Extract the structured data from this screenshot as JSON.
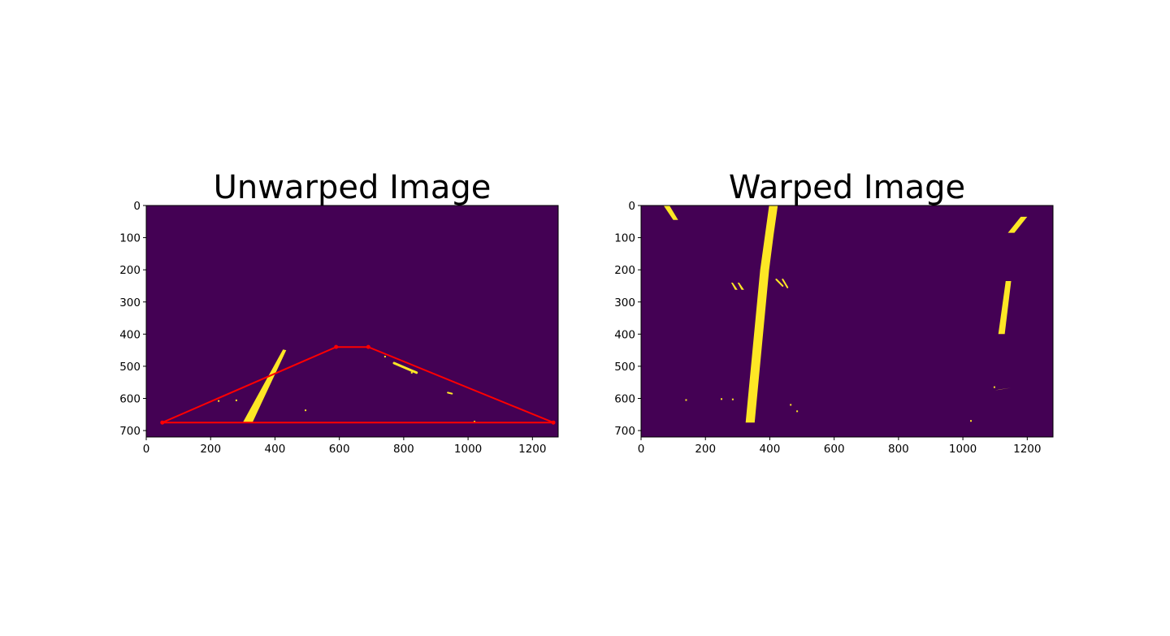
{
  "colors": {
    "background": "#440154",
    "lane": "#fde725",
    "polygon": "#ff0000",
    "axis": "#000000"
  },
  "chart_data": [
    {
      "type": "image",
      "title": "Unwarped Image",
      "xlim": [
        0,
        1280
      ],
      "ylim": [
        720,
        0
      ],
      "xticks": [
        0,
        200,
        400,
        600,
        800,
        1000,
        1200
      ],
      "yticks": [
        0,
        100,
        200,
        300,
        400,
        500,
        600,
        700
      ],
      "lane_strokes": [
        {
          "points": [
            [
              300,
              675
            ],
            [
              330,
              675
            ],
            [
              435,
              450
            ],
            [
              425,
              448
            ]
          ]
        },
        {
          "points": [
            [
              770,
              490
            ],
            [
              840,
              520
            ]
          ],
          "width": 3
        },
        {
          "points": [
            [
              937,
              582
            ],
            [
              950,
              585
            ]
          ],
          "width": 2
        }
      ],
      "speckles": [
        [
          280,
          606
        ],
        [
          495,
          637
        ],
        [
          225,
          608
        ],
        [
          1020,
          672
        ],
        [
          825,
          520
        ],
        [
          742,
          470
        ]
      ],
      "polygon": {
        "points": [
          [
            50,
            675
          ],
          [
            590,
            440
          ],
          [
            690,
            440
          ],
          [
            1265,
            675
          ]
        ],
        "closed": true
      }
    },
    {
      "type": "image",
      "title": "Warped Image",
      "xlim": [
        0,
        1280
      ],
      "ylim": [
        720,
        0
      ],
      "xticks": [
        0,
        200,
        400,
        600,
        800,
        1000,
        1200
      ],
      "yticks": [
        0,
        100,
        200,
        300,
        400,
        500,
        600,
        700
      ],
      "lane_strokes": [
        {
          "points": [
            [
              325,
              675
            ],
            [
              353,
              675
            ],
            [
              398,
              200
            ],
            [
              412,
              90
            ],
            [
              425,
              0
            ],
            [
              398,
              0
            ],
            [
              384,
              100
            ],
            [
              370,
              200
            ]
          ]
        },
        {
          "points": [
            [
              1110,
              400
            ],
            [
              1130,
              400
            ],
            [
              1150,
              235
            ],
            [
              1133,
              235
            ]
          ]
        },
        {
          "points": [
            [
              70,
              0
            ],
            [
              88,
              0
            ],
            [
              115,
              45
            ],
            [
              100,
              45
            ]
          ]
        },
        {
          "points": [
            [
              1140,
              85
            ],
            [
              1180,
              35
            ],
            [
              1200,
              35
            ],
            [
              1160,
              85
            ]
          ]
        },
        {
          "points": [
            [
              280,
              240
            ],
            [
              285,
              240
            ],
            [
              300,
              262
            ],
            [
              292,
              262
            ]
          ]
        },
        {
          "points": [
            [
              300,
              240
            ],
            [
              305,
              240
            ],
            [
              320,
              262
            ],
            [
              312,
              262
            ]
          ]
        },
        {
          "points": [
            [
              420,
              230
            ],
            [
              440,
              250
            ]
          ],
          "width": 2
        },
        {
          "points": [
            [
              440,
              230
            ],
            [
              455,
              255
            ]
          ],
          "width": 2
        },
        {
          "points": [
            [
              1100,
              575
            ],
            [
              1115,
              572
            ],
            [
              1150,
              567
            ]
          ],
          "width": 2
        }
      ],
      "speckles": [
        [
          140,
          605
        ],
        [
          250,
          602
        ],
        [
          285,
          603
        ],
        [
          465,
          620
        ],
        [
          485,
          640
        ],
        [
          1025,
          670
        ],
        [
          1098,
          565
        ]
      ]
    }
  ]
}
